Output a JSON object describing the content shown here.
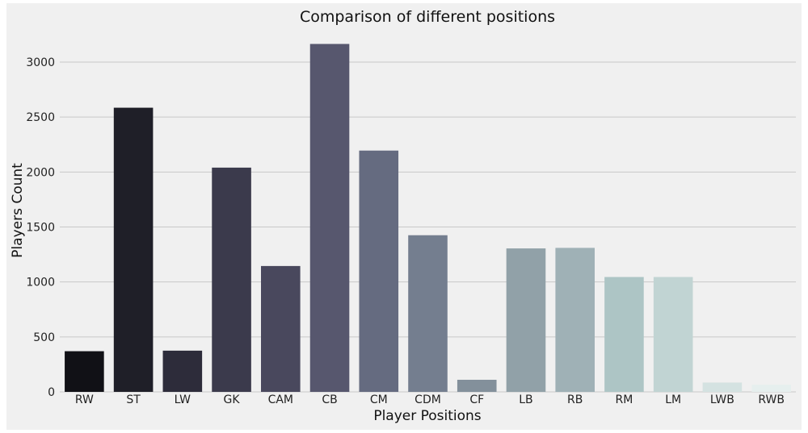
{
  "chart_data": {
    "type": "bar",
    "title": "Comparison of different positions",
    "xlabel": "Player Positions",
    "ylabel": "Players Count",
    "categories": [
      "RW",
      "ST",
      "LW",
      "GK",
      "CAM",
      "CB",
      "CM",
      "CDM",
      "CF",
      "LB",
      "RB",
      "RM",
      "LM",
      "LWB",
      "RWB"
    ],
    "values": [
      370,
      2585,
      375,
      2040,
      1145,
      3165,
      2195,
      1425,
      110,
      1305,
      1310,
      1045,
      1045,
      85,
      65
    ],
    "colors": [
      "#111116",
      "#1f1f28",
      "#2d2c3a",
      "#3b3a4c",
      "#49485d",
      "#57576e",
      "#656b80",
      "#747e8f",
      "#83909b",
      "#91a1a8",
      "#9fb1b6",
      "#adc5c5",
      "#c1d4d3",
      "#d4e2e1",
      "#e6efee"
    ],
    "yticks": [
      0,
      500,
      1000,
      1500,
      2000,
      2500,
      3000
    ],
    "ylim": [
      0,
      3300
    ],
    "grid": true,
    "legend": "none"
  }
}
